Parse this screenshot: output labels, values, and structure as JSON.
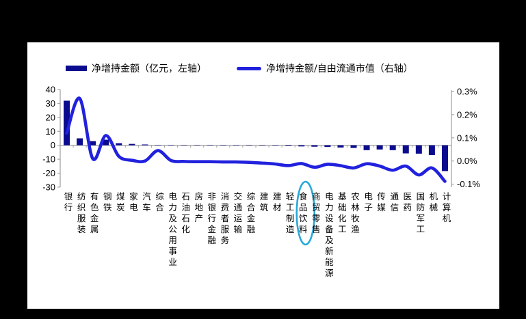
{
  "canvas": {
    "background": "#000000",
    "panel_background": "#ffffff"
  },
  "legend": {
    "position": "top",
    "items": [
      {
        "label": "净增持金额（亿元，左轴）",
        "swatch": "bar"
      },
      {
        "label": "净增持金额/自由流通市值（右轴）",
        "swatch": "line"
      }
    ]
  },
  "chart_data": {
    "type": "bar",
    "subtype": "dual-axis bar + smoothed line",
    "title": "",
    "xlabel": "",
    "ylabel_left": "净增持金额（亿元）",
    "ylabel_right": "净增持金额/自由流通市值",
    "grid": "off",
    "legend_position": "top",
    "axis_color": "#a6a6a6",
    "categories": [
      "银行",
      "纺织服装",
      "有色金属",
      "钢铁",
      "煤炭",
      "家电",
      "汽车",
      "综合",
      "电力及公用事业",
      "石油石化",
      "房地产",
      "非银行金融",
      "消费者服务",
      "交通运输",
      "综合金融",
      "建筑",
      "建材",
      "轻工制造",
      "食品饮料",
      "商贸零售",
      "电力设备及新能源",
      "基础化工",
      "农林牧渔",
      "电子",
      "传媒",
      "通信",
      "医药",
      "国防军工",
      "机械",
      "计算机"
    ],
    "series": [
      {
        "name": "净增持金额（亿元，左轴）",
        "type": "bar",
        "axis": "left",
        "color": "#0b0b8f",
        "values": [
          32,
          5,
          3,
          4,
          1.5,
          1,
          0.6,
          0.3,
          0.3,
          0.2,
          0.2,
          0.15,
          0.1,
          0.1,
          0.05,
          -0.1,
          -0.3,
          -0.5,
          -0.8,
          -1,
          -1.2,
          -1.6,
          -1.9,
          -3.5,
          -3,
          -3.5,
          -5.8,
          -6,
          -7,
          -18.5
        ]
      },
      {
        "name": "净增持金额/自由流通市值（右轴）",
        "type": "line",
        "axis": "right",
        "color": "#2121de",
        "values_pct": [
          0.12,
          0.27,
          0.01,
          0.11,
          0.02,
          0.003,
          0,
          0.045,
          0.002,
          -0.002,
          -0.003,
          -0.003,
          -0.004,
          -0.004,
          -0.006,
          -0.009,
          -0.013,
          -0.02,
          -0.011,
          -0.027,
          -0.014,
          -0.02,
          -0.03,
          -0.012,
          -0.022,
          -0.04,
          -0.022,
          -0.06,
          -0.03,
          -0.088
        ]
      }
    ],
    "left_axis": {
      "ticks": [
        40,
        30,
        20,
        10,
        0,
        -10,
        -20,
        -30
      ],
      "range": [
        -30,
        40
      ]
    },
    "right_axis": {
      "tick_labels": [
        "0.3%",
        "0.2%",
        "0.1%",
        "0.0%",
        "-0.1%"
      ],
      "values": [
        0.3,
        0.2,
        0.1,
        0.0,
        -0.1
      ],
      "max": 0.3,
      "min": -0.1
    },
    "annotation": {
      "shape": "ellipse",
      "target": "食品饮料",
      "color": "#29a8d8"
    }
  }
}
